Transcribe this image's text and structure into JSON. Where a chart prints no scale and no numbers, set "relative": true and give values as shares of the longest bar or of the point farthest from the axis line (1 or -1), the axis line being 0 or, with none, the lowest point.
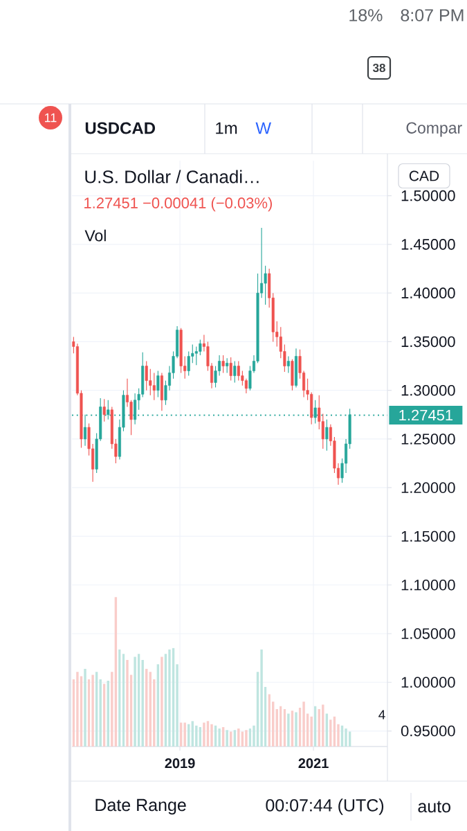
{
  "chart_data": [
    {
      "type": "candlestick",
      "title": "U.S. Dollar / Canadi…",
      "subtitle": "1.27451 −0.00041 (−0.03%)",
      "annotations": [
        "Vol",
        "CAD",
        "USDCAD",
        "1m",
        "W",
        "Compar",
        "Date Range",
        "00:07:44 (UTC)",
        "auto",
        "18%",
        "8:07 PM",
        "11",
        "38",
        "4"
      ],
      "x": [
        "2017-05-29",
        "2017-06-19",
        "2017-07-10",
        "2017-07-31",
        "2017-08-21",
        "2017-09-11",
        "2017-10-02",
        "2017-10-23",
        "2017-11-13",
        "2017-12-04",
        "2017-12-25",
        "2018-01-15",
        "2018-02-05",
        "2018-02-26",
        "2018-03-19",
        "2018-04-09",
        "2018-04-30",
        "2018-05-21",
        "2018-06-11",
        "2018-07-02",
        "2018-07-23",
        "2018-08-13",
        "2018-09-03",
        "2018-09-24",
        "2018-10-15",
        "2018-11-05",
        "2018-11-26",
        "2018-12-17",
        "2019-01-07",
        "2019-01-28",
        "2019-02-18",
        "2019-03-11",
        "2019-04-01",
        "2019-04-22",
        "2019-05-13",
        "2019-06-03",
        "2019-06-24",
        "2019-07-15",
        "2019-08-05",
        "2019-08-26",
        "2019-09-16",
        "2019-10-07",
        "2019-10-28",
        "2019-11-18",
        "2019-12-09",
        "2019-12-30",
        "2020-01-20",
        "2020-02-10",
        "2020-03-02",
        "2020-03-23",
        "2020-04-13",
        "2020-05-04",
        "2020-05-25",
        "2020-06-15",
        "2020-07-06",
        "2020-07-27",
        "2020-08-17",
        "2020-09-07",
        "2020-09-28",
        "2020-10-19",
        "2020-11-09",
        "2020-11-30",
        "2020-12-21",
        "2021-01-11",
        "2021-02-01",
        "2021-02-22",
        "2021-03-15",
        "2021-04-05",
        "2021-04-26",
        "2021-05-17",
        "2021-06-07",
        "2021-06-28",
        "2021-07-19"
      ],
      "ohlc": [
        [
          1.35,
          1.355,
          1.338,
          1.345
        ],
        [
          1.345,
          1.348,
          1.295,
          1.297
        ],
        [
          1.297,
          1.3,
          1.241,
          1.25
        ],
        [
          1.25,
          1.275,
          1.243,
          1.262
        ],
        [
          1.262,
          1.266,
          1.233,
          1.24
        ],
        [
          1.24,
          1.245,
          1.206,
          1.219
        ],
        [
          1.219,
          1.256,
          1.215,
          1.25
        ],
        [
          1.25,
          1.292,
          1.248,
          1.283
        ],
        [
          1.283,
          1.291,
          1.268,
          1.275
        ],
        [
          1.275,
          1.29,
          1.27,
          1.28
        ],
        [
          1.28,
          1.283,
          1.24,
          1.245
        ],
        [
          1.245,
          1.25,
          1.225,
          1.232
        ],
        [
          1.232,
          1.27,
          1.229,
          1.262
        ],
        [
          1.262,
          1.3,
          1.258,
          1.295
        ],
        [
          1.295,
          1.312,
          1.283,
          1.288
        ],
        [
          1.288,
          1.29,
          1.254,
          1.27
        ],
        [
          1.27,
          1.297,
          1.265,
          1.29
        ],
        [
          1.29,
          1.302,
          1.28,
          1.296
        ],
        [
          1.296,
          1.339,
          1.293,
          1.325
        ],
        [
          1.325,
          1.33,
          1.3,
          1.31
        ],
        [
          1.31,
          1.322,
          1.295,
          1.305
        ],
        [
          1.305,
          1.318,
          1.29,
          1.3
        ],
        [
          1.3,
          1.32,
          1.293,
          1.315
        ],
        [
          1.315,
          1.318,
          1.279,
          1.29
        ],
        [
          1.29,
          1.31,
          1.285,
          1.305
        ],
        [
          1.305,
          1.325,
          1.3,
          1.318
        ],
        [
          1.318,
          1.34,
          1.312,
          1.335
        ],
        [
          1.335,
          1.366,
          1.333,
          1.362
        ],
        [
          1.362,
          1.364,
          1.318,
          1.325
        ],
        [
          1.325,
          1.335,
          1.312,
          1.32
        ],
        [
          1.32,
          1.34,
          1.315,
          1.335
        ],
        [
          1.335,
          1.347,
          1.328,
          1.338
        ],
        [
          1.338,
          1.345,
          1.326,
          1.34
        ],
        [
          1.34,
          1.352,
          1.336,
          1.348
        ],
        [
          1.348,
          1.357,
          1.34,
          1.345
        ],
        [
          1.345,
          1.35,
          1.32,
          1.325
        ],
        [
          1.325,
          1.328,
          1.302,
          1.308
        ],
        [
          1.308,
          1.325,
          1.303,
          1.32
        ],
        [
          1.32,
          1.336,
          1.315,
          1.33
        ],
        [
          1.33,
          1.336,
          1.318,
          1.325
        ],
        [
          1.325,
          1.333,
          1.318,
          1.328
        ],
        [
          1.328,
          1.334,
          1.31,
          1.315
        ],
        [
          1.315,
          1.33,
          1.308,
          1.325
        ],
        [
          1.325,
          1.33,
          1.31,
          1.315
        ],
        [
          1.315,
          1.32,
          1.305,
          1.31
        ],
        [
          1.31,
          1.312,
          1.297,
          1.302
        ],
        [
          1.302,
          1.325,
          1.3,
          1.32
        ],
        [
          1.32,
          1.336,
          1.318,
          1.33
        ],
        [
          1.33,
          1.42,
          1.328,
          1.4
        ],
        [
          1.4,
          1.467,
          1.395,
          1.41
        ],
        [
          1.41,
          1.428,
          1.388,
          1.42
        ],
        [
          1.42,
          1.425,
          1.385,
          1.395
        ],
        [
          1.395,
          1.4,
          1.35,
          1.36
        ],
        [
          1.36,
          1.371,
          1.345,
          1.355
        ],
        [
          1.355,
          1.365,
          1.333,
          1.34
        ],
        [
          1.34,
          1.347,
          1.319,
          1.325
        ],
        [
          1.325,
          1.335,
          1.318,
          1.33
        ],
        [
          1.33,
          1.332,
          1.3,
          1.305
        ],
        [
          1.305,
          1.343,
          1.303,
          1.335
        ],
        [
          1.335,
          1.342,
          1.312,
          1.318
        ],
        [
          1.318,
          1.32,
          1.293,
          1.3
        ],
        [
          1.3,
          1.312,
          1.29,
          1.296
        ],
        [
          1.296,
          1.298,
          1.265,
          1.272
        ],
        [
          1.272,
          1.29,
          1.266,
          1.282
        ],
        [
          1.282,
          1.295,
          1.26,
          1.268
        ],
        [
          1.268,
          1.276,
          1.24,
          1.25
        ],
        [
          1.25,
          1.27,
          1.238,
          1.262
        ],
        [
          1.262,
          1.265,
          1.243,
          1.248
        ],
        [
          1.248,
          1.252,
          1.215,
          1.22
        ],
        [
          1.22,
          1.225,
          1.203,
          1.21
        ],
        [
          1.21,
          1.23,
          1.205,
          1.225
        ],
        [
          1.225,
          1.25,
          1.215,
          1.245
        ],
        [
          1.245,
          1.281,
          1.24,
          1.275
        ]
      ],
      "colors": [
        "#ef5350",
        "#ef5350",
        "#ef5350",
        "#26a69a",
        "#ef5350",
        "#ef5350",
        "#26a69a",
        "#26a69a",
        "#ef5350",
        "#26a69a",
        "#ef5350",
        "#ef5350",
        "#26a69a",
        "#26a69a",
        "#ef5350",
        "#ef5350",
        "#26a69a",
        "#26a69a",
        "#26a69a",
        "#ef5350",
        "#ef5350",
        "#ef5350",
        "#26a69a",
        "#ef5350",
        "#26a69a",
        "#26a69a",
        "#26a69a",
        "#26a69a",
        "#ef5350",
        "#ef5350",
        "#26a69a",
        "#26a69a",
        "#26a69a",
        "#26a69a",
        "#ef5350",
        "#ef5350",
        "#ef5350",
        "#26a69a",
        "#26a69a",
        "#ef5350",
        "#26a69a",
        "#ef5350",
        "#26a69a",
        "#ef5350",
        "#ef5350",
        "#ef5350",
        "#26a69a",
        "#26a69a",
        "#26a69a",
        "#26a69a",
        "#26a69a",
        "#ef5350",
        "#ef5350",
        "#ef5350",
        "#ef5350",
        "#ef5350",
        "#26a69a",
        "#ef5350",
        "#26a69a",
        "#ef5350",
        "#ef5350",
        "#ef5350",
        "#ef5350",
        "#26a69a",
        "#ef5350",
        "#ef5350",
        "#26a69a",
        "#ef5350",
        "#ef5350",
        "#ef5350",
        "#26a69a",
        "#26a69a",
        "#26a69a"
      ],
      "xlim": [
        "2017-05-20",
        "2022-02-10"
      ],
      "xticks": [
        {
          "value": "2019-01-01",
          "label": "2019"
        },
        {
          "value": "2021-01-01",
          "label": "2021"
        }
      ],
      "ylim": [
        0.934,
        1.536
      ],
      "yticks": [
        {
          "value": 0.95,
          "label": "0.95000"
        },
        {
          "value": 1.0,
          "label": "1.00000"
        },
        {
          "value": 1.05,
          "label": "1.05000"
        },
        {
          "value": 1.1,
          "label": "1.10000"
        },
        {
          "value": 1.15,
          "label": "1.15000"
        },
        {
          "value": 1.2,
          "label": "1.20000"
        },
        {
          "value": 1.25,
          "label": "1.25000"
        },
        {
          "value": 1.3,
          "label": "1.30000"
        },
        {
          "value": 1.35,
          "label": "1.35000"
        },
        {
          "value": 1.4,
          "label": "1.40000"
        },
        {
          "value": 1.45,
          "label": "1.45000"
        },
        {
          "value": 1.5,
          "label": "1.50000"
        }
      ],
      "grid": true,
      "ref_lines": [
        {
          "axis": "y",
          "value": 1.27451,
          "label": "1.27451",
          "color": "#26a69a",
          "line_style": "dotted"
        }
      ]
    },
    {
      "type": "bar",
      "relative": true,
      "xlim": [
        "2017-05-20",
        "2022-02-10"
      ],
      "x": [
        "2017-05-29",
        "2017-06-19",
        "2017-07-10",
        "2017-07-31",
        "2017-08-21",
        "2017-09-11",
        "2017-10-02",
        "2017-10-23",
        "2017-11-13",
        "2017-12-04",
        "2017-12-25",
        "2018-01-15",
        "2018-02-05",
        "2018-02-26",
        "2018-03-19",
        "2018-04-09",
        "2018-04-30",
        "2018-05-21",
        "2018-06-11",
        "2018-07-02",
        "2018-07-23",
        "2018-08-13",
        "2018-09-03",
        "2018-09-24",
        "2018-10-15",
        "2018-11-05",
        "2018-11-26",
        "2018-12-17",
        "2019-01-07",
        "2019-01-28",
        "2019-02-18",
        "2019-03-11",
        "2019-04-01",
        "2019-04-22",
        "2019-05-13",
        "2019-06-03",
        "2019-06-24",
        "2019-07-15",
        "2019-08-05",
        "2019-08-26",
        "2019-09-16",
        "2019-10-07",
        "2019-10-28",
        "2019-11-18",
        "2019-12-09",
        "2019-12-30",
        "2020-01-20",
        "2020-02-10",
        "2020-03-02",
        "2020-03-23",
        "2020-04-13",
        "2020-05-04",
        "2020-05-25",
        "2020-06-15",
        "2020-07-06",
        "2020-07-27",
        "2020-08-17",
        "2020-09-07",
        "2020-09-28",
        "2020-10-19",
        "2020-11-09",
        "2020-11-30",
        "2020-12-21",
        "2021-01-11",
        "2021-02-01",
        "2021-02-22",
        "2021-03-15",
        "2021-04-05",
        "2021-04-26",
        "2021-05-17",
        "2021-06-07",
        "2021-06-28",
        "2021-07-19"
      ],
      "values": [
        0.45,
        0.5,
        0.47,
        0.52,
        0.45,
        0.48,
        0.5,
        0.45,
        0.42,
        0.44,
        0.5,
        1,
        0.65,
        0.62,
        0.58,
        0.48,
        0.6,
        0.62,
        0.58,
        0.52,
        0.5,
        0.45,
        0.55,
        0.6,
        0.62,
        0.65,
        0.66,
        0.55,
        0.16,
        0.16,
        0.15,
        0.17,
        0.14,
        0.13,
        0.16,
        0.17,
        0.15,
        0.14,
        0.12,
        0.13,
        0.11,
        0.1,
        0.11,
        0.12,
        0.1,
        0.11,
        0.12,
        0.14,
        0.5,
        0.65,
        0.4,
        0.35,
        0.3,
        0.25,
        0.27,
        0.25,
        0.22,
        0.24,
        0.23,
        0.26,
        0.3,
        0.22,
        0.2,
        0.27,
        0.25,
        0.28,
        0.22,
        0.18,
        0.2,
        0.15,
        0.14,
        0.12,
        0.1
      ],
      "colors": [
        "#f9cdca",
        "#f9cdca",
        "#f9cdca",
        "#bfe5e0",
        "#f9cdca",
        "#f9cdca",
        "#bfe5e0",
        "#bfe5e0",
        "#f9cdca",
        "#bfe5e0",
        "#f9cdca",
        "#f9cdca",
        "#bfe5e0",
        "#bfe5e0",
        "#f9cdca",
        "#f9cdca",
        "#bfe5e0",
        "#bfe5e0",
        "#bfe5e0",
        "#f9cdca",
        "#f9cdca",
        "#f9cdca",
        "#bfe5e0",
        "#f9cdca",
        "#bfe5e0",
        "#bfe5e0",
        "#bfe5e0",
        "#bfe5e0",
        "#f9cdca",
        "#f9cdca",
        "#bfe5e0",
        "#bfe5e0",
        "#bfe5e0",
        "#bfe5e0",
        "#f9cdca",
        "#f9cdca",
        "#f9cdca",
        "#bfe5e0",
        "#bfe5e0",
        "#f9cdca",
        "#bfe5e0",
        "#f9cdca",
        "#bfe5e0",
        "#f9cdca",
        "#f9cdca",
        "#f9cdca",
        "#bfe5e0",
        "#bfe5e0",
        "#bfe5e0",
        "#bfe5e0",
        "#bfe5e0",
        "#f9cdca",
        "#f9cdca",
        "#f9cdca",
        "#f9cdca",
        "#f9cdca",
        "#bfe5e0",
        "#f9cdca",
        "#bfe5e0",
        "#f9cdca",
        "#f9cdca",
        "#f9cdca",
        "#f9cdca",
        "#bfe5e0",
        "#f9cdca",
        "#f9cdca",
        "#bfe5e0",
        "#f9cdca",
        "#f9cdca",
        "#f9cdca",
        "#bfe5e0",
        "#bfe5e0",
        "#bfe5e0"
      ]
    }
  ]
}
